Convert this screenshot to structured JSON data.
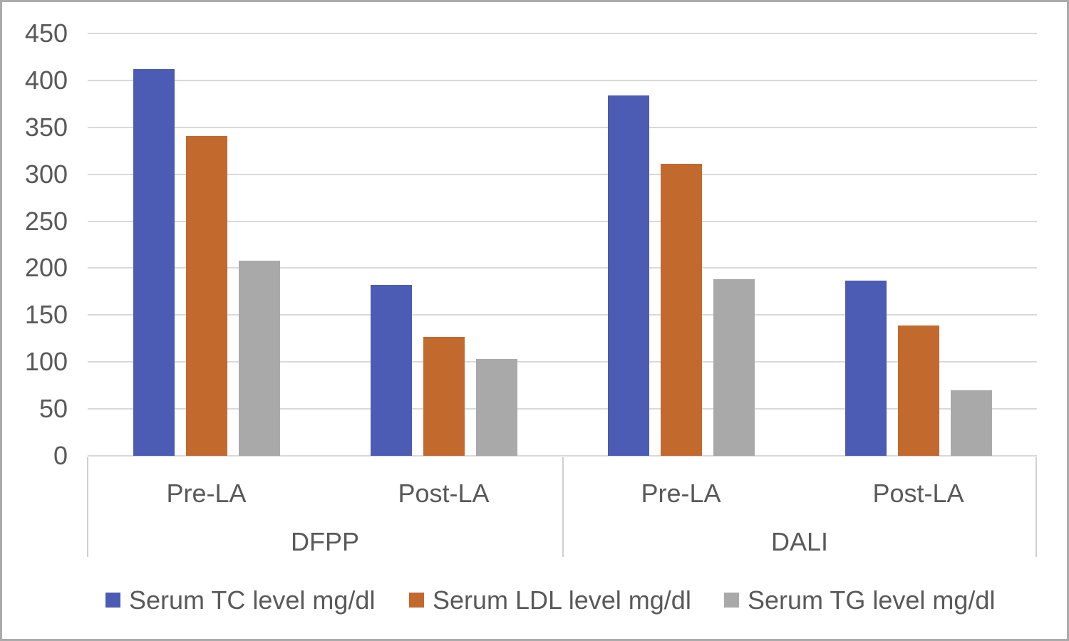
{
  "chart_data": {
    "type": "bar",
    "title": "",
    "xlabel": "",
    "ylabel": "",
    "ylim": [
      0,
      450
    ],
    "yticks": [
      0,
      50,
      100,
      150,
      200,
      250,
      300,
      350,
      400,
      450
    ],
    "grid": true,
    "legend_position": "bottom",
    "categories": [
      "DFPP Pre-LA",
      "DFPP Post-LA",
      "DALI Pre-LA",
      "DALI Post-LA"
    ],
    "x_subgroups": [
      "Pre-LA",
      "Post-LA",
      "Pre-LA",
      "Post-LA"
    ],
    "groups": [
      {
        "label": "DFPP"
      },
      {
        "label": "DALI"
      }
    ],
    "series": [
      {
        "name": "Serum TC level mg/dl",
        "color": "#4c5cb4",
        "values": [
          412,
          182,
          384,
          187
        ]
      },
      {
        "name": "Serum LDL level mg/dl",
        "color": "#c2692e",
        "values": [
          341,
          127,
          311,
          139
        ]
      },
      {
        "name": "Serum TG level mg/dl",
        "color": "#a9a9a9",
        "values": [
          208,
          103,
          188,
          70
        ]
      }
    ]
  }
}
